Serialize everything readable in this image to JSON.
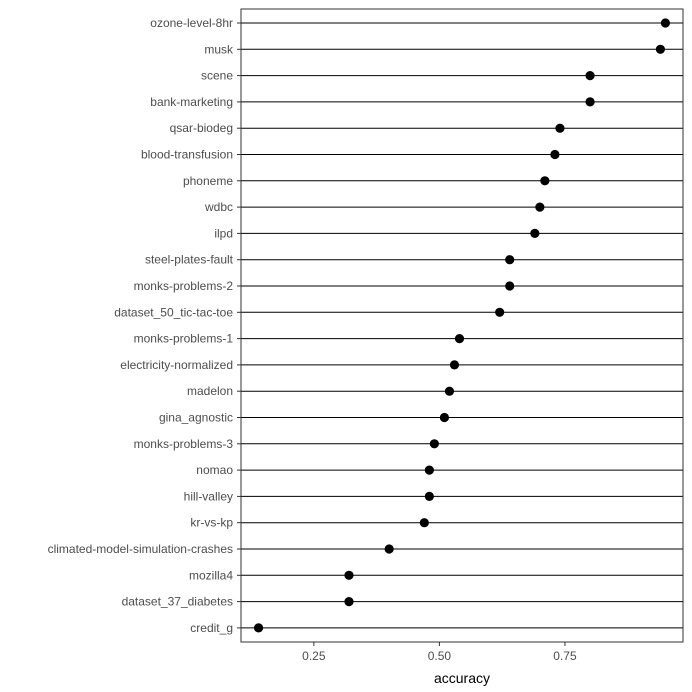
{
  "chart_data": {
    "type": "scatter",
    "style": "lollipop-dot",
    "title": "",
    "xlabel": "accuracy",
    "ylabel": "",
    "xlim": [
      0.105,
      0.985
    ],
    "x_ticks": [
      0.25,
      0.5,
      0.75
    ],
    "x_tick_labels": [
      "0.25",
      "0.50",
      "0.75"
    ],
    "grid": false,
    "point_color": "#000000",
    "line_color": "#000000",
    "categories": [
      "ozone-level-8hr",
      "musk",
      "scene",
      "bank-marketing",
      "qsar-biodeg",
      "blood-transfusion",
      "phoneme",
      "wdbc",
      "ilpd",
      "steel-plates-fault",
      "monks-problems-2",
      "dataset_50_tic-tac-toe",
      "monks-problems-1",
      "electricity-normalized",
      "madelon",
      "gina_agnostic",
      "monks-problems-3",
      "nomao",
      "hill-valley",
      "kr-vs-kp",
      "climated-model-simulation-crashes",
      "mozilla4",
      "dataset_37_diabetes",
      "credit_g"
    ],
    "values": [
      0.95,
      0.94,
      0.8,
      0.8,
      0.74,
      0.73,
      0.71,
      0.7,
      0.69,
      0.64,
      0.64,
      0.62,
      0.54,
      0.53,
      0.52,
      0.51,
      0.49,
      0.48,
      0.48,
      0.47,
      0.4,
      0.32,
      0.32,
      0.14
    ]
  }
}
